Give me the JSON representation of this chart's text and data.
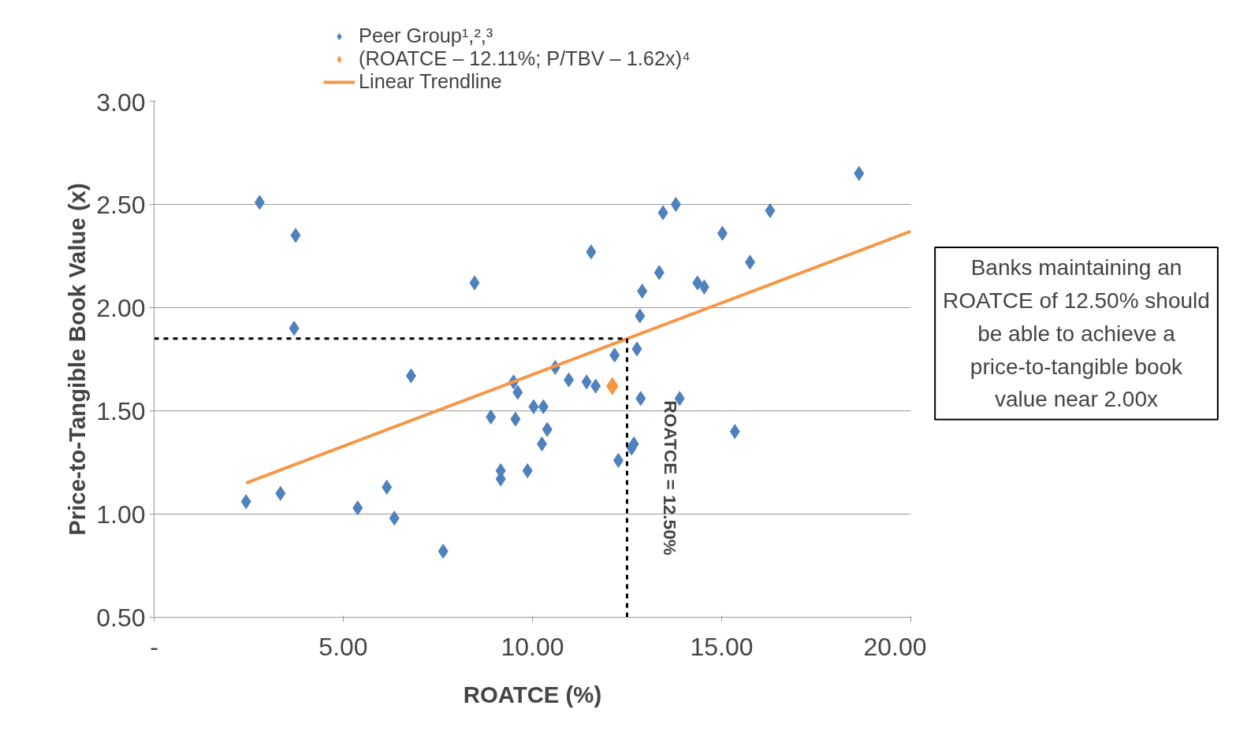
{
  "chart_data": {
    "type": "scatter",
    "xlabel": "ROATCE (%)",
    "ylabel": "Price-to-Tangible Book Value (x)",
    "xlim": [
      0,
      20
    ],
    "xticks": [
      {
        "value": 0,
        "label": "-"
      },
      {
        "value": 5,
        "label": "5.00"
      },
      {
        "value": 10,
        "label": "10.00"
      },
      {
        "value": 15,
        "label": "15.00"
      },
      {
        "value": 20,
        "label": "20.00"
      }
    ],
    "ylim": [
      0.5,
      3.0
    ],
    "yticks": [
      {
        "value": 0.5,
        "label": "0.50"
      },
      {
        "value": 1,
        "label": "1.00"
      },
      {
        "value": 1.5,
        "label": "1.50"
      },
      {
        "value": 2,
        "label": "2.00"
      },
      {
        "value": 2.5,
        "label": "2.50"
      },
      {
        "value": 3,
        "label": "3.00"
      }
    ],
    "grid": "y",
    "legend": "top",
    "marker": "diamond",
    "series": [
      {
        "name": "Peer Group¹,²,³",
        "color": "#4f81bd",
        "x": [
          2.43,
          2.79,
          3.34,
          3.74,
          3.7,
          5.38,
          6.15,
          6.35,
          6.79,
          7.64,
          8.47,
          8.9,
          9.16,
          9.16,
          9.5,
          9.61,
          9.55,
          9.87,
          10.03,
          10.29,
          10.39,
          10.25,
          10.6,
          10.96,
          11.43,
          11.55,
          11.67,
          12.17,
          12.27,
          12.62,
          12.68,
          12.76,
          12.84,
          12.9,
          12.86,
          13.35,
          13.45,
          13.79,
          13.89,
          14.36,
          14.54,
          15.02,
          15.35,
          15.75,
          16.28,
          18.63
        ],
        "values": [
          1.06,
          2.51,
          1.1,
          2.35,
          1.9,
          1.03,
          1.13,
          0.98,
          1.67,
          0.82,
          2.12,
          1.47,
          1.21,
          1.17,
          1.64,
          1.59,
          1.46,
          1.21,
          1.52,
          1.52,
          1.41,
          1.34,
          1.71,
          1.65,
          1.64,
          2.27,
          1.62,
          1.77,
          1.26,
          1.32,
          1.34,
          1.8,
          1.96,
          2.08,
          1.56,
          2.17,
          2.46,
          2.5,
          1.56,
          2.12,
          2.1,
          2.36,
          1.4,
          2.22,
          2.47,
          2.65
        ]
      },
      {
        "name": "(ROATCE – 12.11%; P/TBV – 1.62x)⁴",
        "color": "#f79646",
        "x": [
          12.11
        ],
        "values": [
          1.62
        ]
      },
      {
        "name": "Linear Trendline",
        "type": "line",
        "color": "#f79646",
        "x": [
          2.43,
          20
        ],
        "values": [
          1.15,
          2.37
        ],
        "marker": "none"
      }
    ],
    "ref_lines": [
      {
        "axis": "x",
        "value": 12.5,
        "label": "ROATCE = 12.50%",
        "color": "#000000",
        "line_style": "dashed"
      },
      {
        "axis": "y",
        "value": 1.85,
        "color": "#000000",
        "line_style": "dashed"
      }
    ],
    "annotations": [
      "Banks maintaining an ROATCE of 12.50% should be able to achieve a price-to-tangible book value near 2.00x"
    ]
  }
}
